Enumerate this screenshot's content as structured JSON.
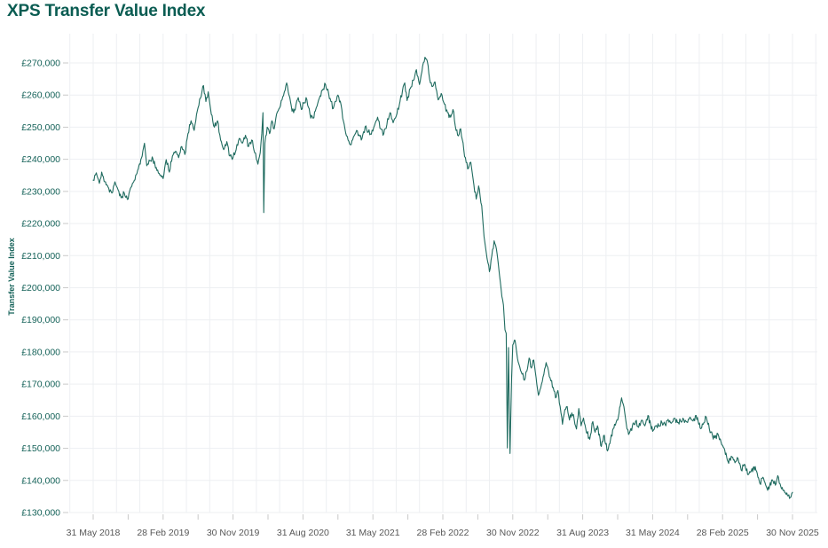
{
  "page": {
    "title": "XPS Transfer Value Index"
  },
  "colors": {
    "accent": "#0a5c52",
    "line": "#1f6b5f",
    "grid": "#edeff2",
    "axis_tick": "#c9c9c9",
    "y_label": "#156259",
    "x_label": "#575757"
  },
  "chart_data": {
    "type": "line",
    "title": "XPS Transfer Value Index",
    "xlabel": "",
    "ylabel": "Transfer Value Index",
    "legend": "none",
    "grid": true,
    "currency_prefix": "£",
    "ylim": [
      130000,
      270000
    ],
    "y_ticks": [
      130000,
      140000,
      150000,
      160000,
      170000,
      180000,
      190000,
      200000,
      210000,
      220000,
      230000,
      240000,
      250000,
      260000,
      270000
    ],
    "x_unit": "months since 31 May 2018",
    "xlim": [
      0,
      90
    ],
    "x_tick_months": [
      0,
      9,
      18,
      27,
      36,
      45,
      54,
      63,
      72,
      81,
      90
    ],
    "x_tick_labels": [
      "31 May 2018",
      "28 Feb 2019",
      "30 Nov 2019",
      "31 Aug 2020",
      "31 May 2021",
      "28 Feb 2022",
      "30 Nov 2022",
      "31 Aug 2023",
      "31 May 2024",
      "28 Feb 2025",
      "30 Nov 2025"
    ],
    "x_minor_tick_step": 4.5,
    "x_gridline_step": 3,
    "series": [
      {
        "name": "Transfer Value Index",
        "color": "#1f6b5f",
        "points": [
          [
            0,
            233500
          ],
          [
            0.4,
            235800
          ],
          [
            0.8,
            232500
          ],
          [
            1.1,
            236000
          ],
          [
            1.5,
            233000
          ],
          [
            2,
            231000
          ],
          [
            2.4,
            229500
          ],
          [
            2.8,
            233000
          ],
          [
            3.2,
            230500
          ],
          [
            3.6,
            228000
          ],
          [
            4,
            229500
          ],
          [
            4.4,
            227500
          ],
          [
            4.8,
            231000
          ],
          [
            5.3,
            233500
          ],
          [
            5.8,
            237000
          ],
          [
            6.3,
            241000
          ],
          [
            6.6,
            245000
          ],
          [
            6.9,
            238000
          ],
          [
            7.3,
            239500
          ],
          [
            7.7,
            240000
          ],
          [
            8.2,
            236500
          ],
          [
            8.6,
            235000
          ],
          [
            9,
            234000
          ],
          [
            9.4,
            239900
          ],
          [
            9.8,
            236000
          ],
          [
            10.2,
            241000
          ],
          [
            10.6,
            242500
          ],
          [
            11,
            240500
          ],
          [
            11.4,
            244000
          ],
          [
            11.8,
            241500
          ],
          [
            12.2,
            248000
          ],
          [
            12.6,
            252000
          ],
          [
            13,
            249000
          ],
          [
            13.4,
            255000
          ],
          [
            13.8,
            259000
          ],
          [
            14.2,
            263000
          ],
          [
            14.5,
            258000
          ],
          [
            14.8,
            261000
          ],
          [
            15.2,
            254000
          ],
          [
            15.6,
            250000
          ],
          [
            16,
            252000
          ],
          [
            16.4,
            246000
          ],
          [
            16.8,
            243000
          ],
          [
            17.2,
            245500
          ],
          [
            17.6,
            241000
          ],
          [
            18,
            240500
          ],
          [
            18.4,
            243000
          ],
          [
            18.8,
            246500
          ],
          [
            19.2,
            245000
          ],
          [
            19.6,
            247500
          ],
          [
            20,
            244000
          ],
          [
            20.4,
            246000
          ],
          [
            20.8,
            242000
          ],
          [
            21.2,
            238500
          ],
          [
            21.5,
            242000
          ],
          [
            21.7,
            248000
          ],
          [
            21.85,
            254500
          ],
          [
            21.95,
            223400
          ],
          [
            22.1,
            245000
          ],
          [
            22.4,
            250000
          ],
          [
            22.7,
            248000
          ],
          [
            23,
            252000
          ],
          [
            23.3,
            249500
          ],
          [
            23.6,
            254000
          ],
          [
            24,
            256000
          ],
          [
            24.3,
            258500
          ],
          [
            24.6,
            261000
          ],
          [
            24.9,
            263800
          ],
          [
            25.2,
            260000
          ],
          [
            25.5,
            256500
          ],
          [
            25.8,
            254500
          ],
          [
            26.1,
            257000
          ],
          [
            26.4,
            259200
          ],
          [
            26.8,
            255500
          ],
          [
            27.1,
            257500
          ],
          [
            27.5,
            258600
          ],
          [
            27.9,
            254000
          ],
          [
            28.3,
            252800
          ],
          [
            28.7,
            256000
          ],
          [
            29.1,
            259000
          ],
          [
            29.5,
            261500
          ],
          [
            29.9,
            263300
          ],
          [
            30.3,
            260500
          ],
          [
            30.6,
            258000
          ],
          [
            30.9,
            255800
          ],
          [
            31.2,
            258000
          ],
          [
            31.5,
            260000
          ],
          [
            31.9,
            257000
          ],
          [
            32.2,
            252000
          ],
          [
            32.5,
            248100
          ],
          [
            32.8,
            246000
          ],
          [
            33.1,
            244500
          ],
          [
            33.5,
            247000
          ],
          [
            33.9,
            249000
          ],
          [
            34.2,
            247600
          ],
          [
            34.6,
            246500
          ],
          [
            35,
            250100
          ],
          [
            35.4,
            248500
          ],
          [
            35.8,
            247800
          ],
          [
            36.2,
            250500
          ],
          [
            36.6,
            253100
          ],
          [
            37,
            249500
          ],
          [
            37.4,
            248000
          ],
          [
            37.8,
            250900
          ],
          [
            38.2,
            254500
          ],
          [
            38.6,
            251400
          ],
          [
            39,
            253500
          ],
          [
            39.4,
            257000
          ],
          [
            39.8,
            261300
          ],
          [
            40.1,
            263800
          ],
          [
            40.4,
            258300
          ],
          [
            40.8,
            262000
          ],
          [
            41.2,
            264600
          ],
          [
            41.6,
            267900
          ],
          [
            42,
            263300
          ],
          [
            42.4,
            269000
          ],
          [
            42.7,
            271800
          ],
          [
            43,
            270500
          ],
          [
            43.3,
            265000
          ],
          [
            43.6,
            262700
          ],
          [
            44,
            264100
          ],
          [
            44.4,
            258500
          ],
          [
            44.8,
            260500
          ],
          [
            45.2,
            257200
          ],
          [
            45.6,
            254500
          ],
          [
            46,
            253100
          ],
          [
            46.3,
            255500
          ],
          [
            46.7,
            249000
          ],
          [
            47,
            247300
          ],
          [
            47.3,
            249500
          ],
          [
            47.7,
            243000
          ],
          [
            48,
            239000
          ],
          [
            48.3,
            237200
          ],
          [
            48.6,
            239100
          ],
          [
            49,
            232000
          ],
          [
            49.3,
            227600
          ],
          [
            49.6,
            231700
          ],
          [
            50,
            225600
          ],
          [
            50.3,
            216000
          ],
          [
            50.7,
            209000
          ],
          [
            51,
            205000
          ],
          [
            51.3,
            210000
          ],
          [
            51.6,
            214600
          ],
          [
            51.9,
            212000
          ],
          [
            52.2,
            206100
          ],
          [
            52.5,
            199500
          ],
          [
            52.8,
            194600
          ],
          [
            53,
            186900
          ],
          [
            53.15,
            185800
          ],
          [
            53.3,
            150100
          ],
          [
            53.45,
            181400
          ],
          [
            53.55,
            163000
          ],
          [
            53.65,
            148400
          ],
          [
            53.85,
            172000
          ],
          [
            54,
            182200
          ],
          [
            54.3,
            183600
          ],
          [
            54.6,
            178000
          ],
          [
            54.9,
            175300
          ],
          [
            55.2,
            173100
          ],
          [
            55.5,
            171200
          ],
          [
            55.8,
            174000
          ],
          [
            56.1,
            178100
          ],
          [
            56.4,
            175000
          ],
          [
            56.7,
            177500
          ],
          [
            57,
            172000
          ],
          [
            57.3,
            166500
          ],
          [
            57.7,
            170000
          ],
          [
            58,
            173000
          ],
          [
            58.3,
            176700
          ],
          [
            58.6,
            174000
          ],
          [
            58.9,
            171000
          ],
          [
            59.2,
            169000
          ],
          [
            59.5,
            165700
          ],
          [
            59.8,
            168000
          ],
          [
            60.1,
            163000
          ],
          [
            60.4,
            157500
          ],
          [
            60.7,
            162100
          ],
          [
            61,
            163000
          ],
          [
            61.3,
            158800
          ],
          [
            61.6,
            161000
          ],
          [
            61.9,
            159000
          ],
          [
            62.2,
            156000
          ],
          [
            62.5,
            162400
          ],
          [
            62.8,
            157000
          ],
          [
            63.1,
            159400
          ],
          [
            63.4,
            156000
          ],
          [
            63.9,
            152800
          ],
          [
            64.3,
            158300
          ],
          [
            64.6,
            155000
          ],
          [
            64.9,
            157000
          ],
          [
            65.4,
            150600
          ],
          [
            65.7,
            154000
          ],
          [
            66.2,
            149200
          ],
          [
            66.6,
            153000
          ],
          [
            67.1,
            157500
          ],
          [
            67.5,
            158800
          ],
          [
            68,
            165700
          ],
          [
            68.3,
            163000
          ],
          [
            68.7,
            156000
          ],
          [
            69,
            154700
          ],
          [
            69.4,
            157000
          ],
          [
            69.8,
            158300
          ],
          [
            70.2,
            156500
          ],
          [
            70.6,
            158800
          ],
          [
            71,
            157000
          ],
          [
            71.4,
            160200
          ],
          [
            72,
            155300
          ],
          [
            72.4,
            157000
          ],
          [
            72.8,
            156900
          ],
          [
            73.2,
            158000
          ],
          [
            73.6,
            157500
          ],
          [
            74,
            159000
          ],
          [
            74.4,
            157800
          ],
          [
            74.8,
            159400
          ],
          [
            75.2,
            158000
          ],
          [
            75.6,
            158500
          ],
          [
            76,
            159000
          ],
          [
            76.4,
            158200
          ],
          [
            76.8,
            159700
          ],
          [
            77.2,
            158500
          ],
          [
            77.6,
            160200
          ],
          [
            78.2,
            156100
          ],
          [
            78.6,
            158000
          ],
          [
            78.9,
            159700
          ],
          [
            79.3,
            156000
          ],
          [
            79.7,
            154000
          ],
          [
            80,
            153300
          ],
          [
            80.4,
            154500
          ],
          [
            80.8,
            152000
          ],
          [
            81.2,
            150000
          ],
          [
            81.7,
            145900
          ],
          [
            82.2,
            147300
          ],
          [
            82.6,
            145500
          ],
          [
            83,
            146800
          ],
          [
            83.4,
            143200
          ],
          [
            83.8,
            145000
          ],
          [
            84.3,
            141800
          ],
          [
            84.7,
            143000
          ],
          [
            85.2,
            144300
          ],
          [
            85.8,
            139100
          ],
          [
            86.2,
            141000
          ],
          [
            86.8,
            136900
          ],
          [
            87.4,
            140200
          ],
          [
            87.8,
            138500
          ],
          [
            88.1,
            141500
          ],
          [
            88.5,
            138000
          ],
          [
            89.1,
            136100
          ],
          [
            89.7,
            134700
          ],
          [
            90,
            136300
          ]
        ]
      }
    ]
  }
}
